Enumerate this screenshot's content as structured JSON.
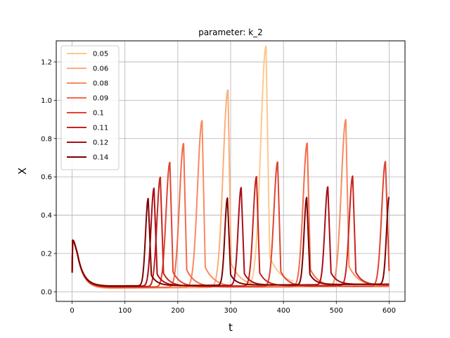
{
  "chart_data": {
    "type": "line",
    "title": "parameter: k_2",
    "xlabel": "t",
    "ylabel": "X",
    "xlim": [
      -30,
      630
    ],
    "ylim": [
      -0.05,
      1.31
    ],
    "xticks": [
      0,
      100,
      200,
      300,
      400,
      500,
      600
    ],
    "yticks": [
      0.0,
      0.2,
      0.4,
      0.6,
      0.8,
      1.0,
      1.2
    ],
    "grid": true,
    "legend_position": "top-left",
    "common_start": [
      [
        0,
        0.1
      ],
      [
        1,
        0.27
      ],
      [
        3,
        0.265
      ],
      [
        6,
        0.24
      ],
      [
        10,
        0.2
      ]
    ],
    "series": [
      {
        "name": "0.05",
        "color": "#fdc98a",
        "t_end": 418,
        "decay_to": 0.018,
        "base_end": 0.035,
        "peaks": [
          {
            "t": 367,
            "h": 1.25,
            "rise": 14,
            "drop": 7,
            "tail": 22
          }
        ]
      },
      {
        "name": "0.06",
        "color": "#fcae79",
        "t_end": 600,
        "decay_to": 0.018,
        "base_end": 0.03,
        "peaks": [
          {
            "t": 295,
            "h": 1.03,
            "rise": 13,
            "drop": 6,
            "tail": 20
          }
        ]
      },
      {
        "name": "0.08",
        "color": "#f88b5e",
        "t_end": 600,
        "decay_to": 0.02,
        "base_end": 0.03,
        "peaks": [
          {
            "t": 246,
            "h": 0.87,
            "rise": 12,
            "drop": 6,
            "tail": 18
          },
          {
            "t": 518,
            "h": 0.87,
            "rise": 12,
            "drop": 6,
            "tail": 18
          }
        ]
      },
      {
        "name": "0.09",
        "color": "#f26c49",
        "t_end": 600,
        "decay_to": 0.022,
        "base_end": 0.028,
        "peaks": [
          {
            "t": 211,
            "h": 0.75,
            "rise": 11,
            "drop": 6,
            "tail": 16
          },
          {
            "t": 445,
            "h": 0.75,
            "rise": 11,
            "drop": 6,
            "tail": 16
          }
        ]
      },
      {
        "name": "0.1",
        "color": "#df4531",
        "t_end": 600,
        "decay_to": 0.024,
        "base_end": 0.03,
        "peaks": [
          {
            "t": 185,
            "h": 0.65,
            "rise": 10,
            "drop": 6,
            "tail": 14
          },
          {
            "t": 389,
            "h": 0.65,
            "rise": 10,
            "drop": 6,
            "tail": 14
          },
          {
            "t": 593,
            "h": 0.65,
            "rise": 10,
            "drop": 7,
            "tail": 14
          }
        ]
      },
      {
        "name": "0.11",
        "color": "#c9241e",
        "t_end": 600,
        "decay_to": 0.026,
        "base_end": 0.035,
        "peaks": [
          {
            "t": 167,
            "h": 0.57,
            "rise": 9,
            "drop": 6,
            "tail": 13
          },
          {
            "t": 349,
            "h": 0.57,
            "rise": 9,
            "drop": 6,
            "tail": 13
          },
          {
            "t": 531,
            "h": 0.57,
            "rise": 9,
            "drop": 6,
            "tail": 13
          }
        ]
      },
      {
        "name": "0.12",
        "color": "#a90e17",
        "t_end": 600,
        "decay_to": 0.028,
        "base_end": 0.04,
        "peaks": [
          {
            "t": 155,
            "h": 0.51,
            "rise": 8,
            "drop": 6,
            "tail": 12
          },
          {
            "t": 320,
            "h": 0.51,
            "rise": 8,
            "drop": 6,
            "tail": 12
          },
          {
            "t": 484,
            "h": 0.51,
            "rise": 8,
            "drop": 6,
            "tail": 12
          }
        ]
      },
      {
        "name": "0.14",
        "color": "#7f0000",
        "t_end": 600,
        "decay_to": 0.03,
        "base_end": 0.04,
        "peaks": [
          {
            "t": 144,
            "h": 0.455,
            "rise": 7,
            "drop": 6,
            "tail": 11
          },
          {
            "t": 294,
            "h": 0.455,
            "rise": 7,
            "drop": 6,
            "tail": 11
          },
          {
            "t": 444,
            "h": 0.455,
            "rise": 7,
            "drop": 6,
            "tail": 11
          },
          {
            "t": 600,
            "h": 0.455,
            "rise": 7,
            "drop": 6,
            "tail": 11
          }
        ]
      }
    ]
  }
}
